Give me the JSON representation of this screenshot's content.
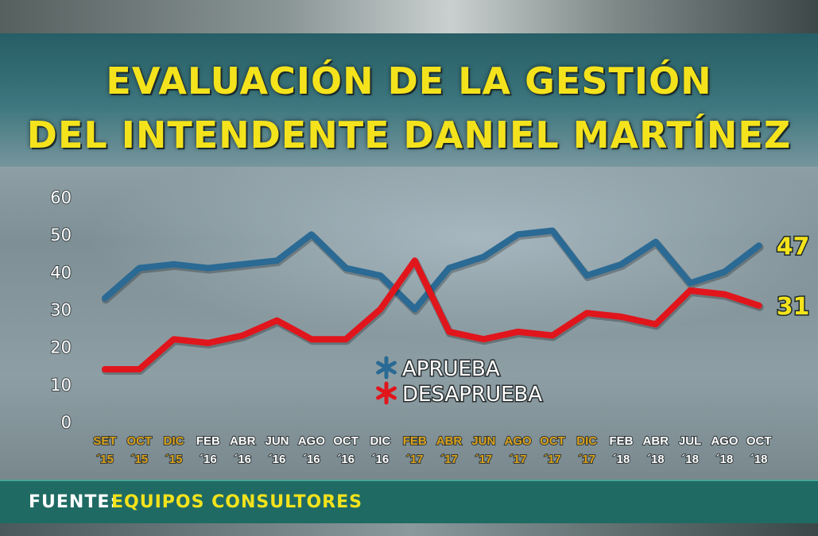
{
  "title_line1": "EVALUACIÓN DE LA GESTIÓN",
  "title_line2": "DEL INTENDENTE DANIEL MARTÍNEZ",
  "footer": {
    "label": "FUENTE:",
    "source": "EQUIPOS CONSULTORES"
  },
  "colors": {
    "aprueba": "#2a6a94",
    "desaprueba": "#e0161c",
    "title": "#f4e31c",
    "highlight_month": "#d9a21b"
  },
  "chart_data": {
    "type": "line",
    "ylim": [
      0,
      60
    ],
    "yticks": [
      0,
      10,
      20,
      30,
      40,
      50,
      60
    ],
    "categories": [
      {
        "m": "SET",
        "y": "´15",
        "hl": true
      },
      {
        "m": "OCT",
        "y": "´15",
        "hl": true
      },
      {
        "m": "DIC",
        "y": "´15",
        "hl": true
      },
      {
        "m": "FEB",
        "y": "´16",
        "hl": false
      },
      {
        "m": "ABR",
        "y": "´16",
        "hl": false
      },
      {
        "m": "JUN",
        "y": "´16",
        "hl": false
      },
      {
        "m": "AGO",
        "y": "´16",
        "hl": false
      },
      {
        "m": "OCT",
        "y": "´16",
        "hl": false
      },
      {
        "m": "DIC",
        "y": "´16",
        "hl": false
      },
      {
        "m": "FEB",
        "y": "´17",
        "hl": true
      },
      {
        "m": "ABR",
        "y": "´17",
        "hl": true
      },
      {
        "m": "JUN",
        "y": "´17",
        "hl": true
      },
      {
        "m": "AGO",
        "y": "´17",
        "hl": true
      },
      {
        "m": "OCT",
        "y": "´17",
        "hl": true
      },
      {
        "m": "DIC",
        "y": "´17",
        "hl": true
      },
      {
        "m": "FEB",
        "y": "´18",
        "hl": false
      },
      {
        "m": "ABR",
        "y": "´18",
        "hl": false
      },
      {
        "m": "JUL",
        "y": "´18",
        "hl": false
      },
      {
        "m": "AGO",
        "y": "´18",
        "hl": false
      },
      {
        "m": "OCT",
        "y": "´18",
        "hl": false
      }
    ],
    "series": [
      {
        "name": "APRUEBA",
        "color": "#2a6a94",
        "values": [
          33,
          41,
          42,
          41,
          42,
          43,
          50,
          41,
          39,
          30,
          41,
          44,
          50,
          51,
          39,
          42,
          48,
          37,
          40,
          47
        ]
      },
      {
        "name": "DESAPRUEBA",
        "color": "#e0161c",
        "values": [
          14,
          14,
          22,
          21,
          23,
          27,
          22,
          22,
          30,
          43,
          24,
          22,
          24,
          23,
          29,
          28,
          26,
          35,
          34,
          31
        ]
      }
    ],
    "end_labels": [
      "47",
      "31"
    ],
    "legend": "center"
  }
}
